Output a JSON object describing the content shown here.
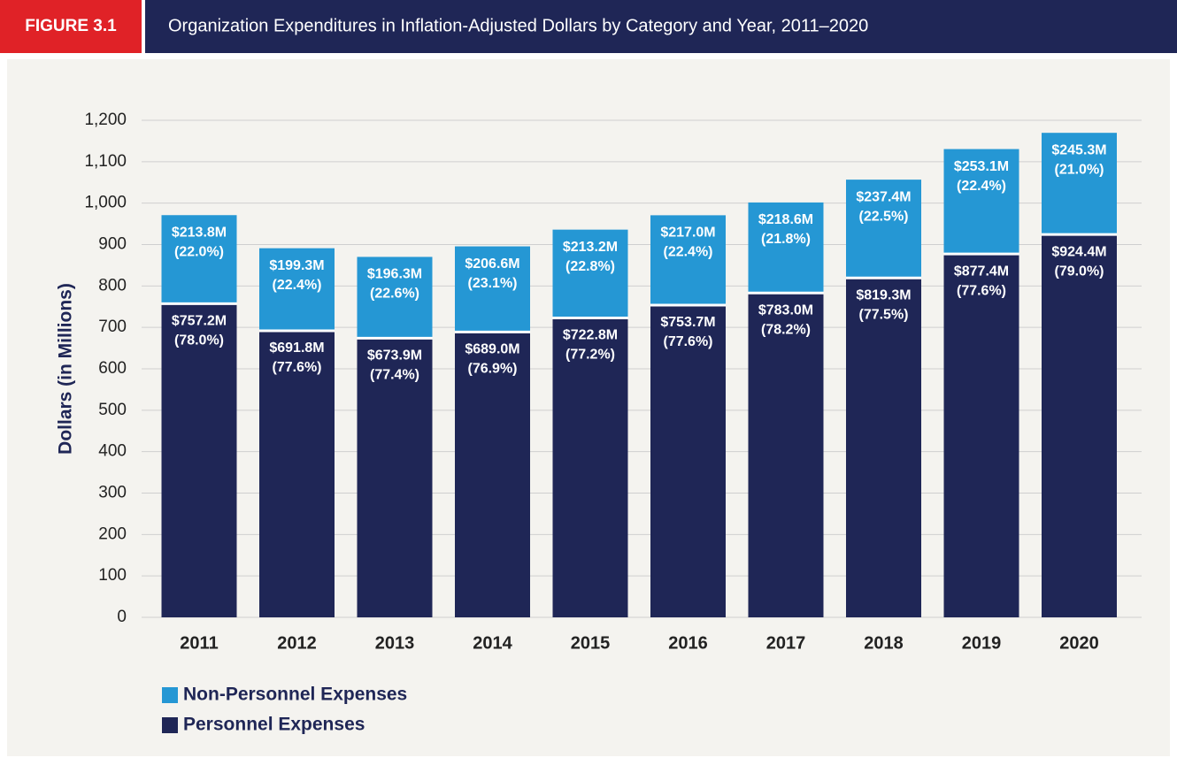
{
  "figure_label": "FIGURE 3.1",
  "chart_data": {
    "type": "stacked_bar",
    "title": "Organization Expenditures in Inflation-Adjusted Dollars by Category and Year, 2011–2020",
    "ylabel": "Dollars (in Millions)",
    "categories": [
      "2011",
      "2012",
      "2013",
      "2014",
      "2015",
      "2016",
      "2017",
      "2018",
      "2019",
      "2020"
    ],
    "series": [
      {
        "name": "Personnel Expenses",
        "color": "#1f2656",
        "values": [
          757.2,
          691.8,
          673.9,
          689.0,
          722.8,
          753.7,
          783.0,
          819.3,
          877.4,
          924.4
        ],
        "value_labels": [
          "$757.2M",
          "$691.8M",
          "$673.9M",
          "$689.0M",
          "$722.8M",
          "$753.7M",
          "$783.0M",
          "$819.3M",
          "$877.4M",
          "$924.4M"
        ],
        "share_labels": [
          "(78.0%)",
          "(77.6%)",
          "(77.4%)",
          "(76.9%)",
          "(77.2%)",
          "(77.6%)",
          "(78.2%)",
          "(77.5%)",
          "(77.6%)",
          "(79.0%)"
        ]
      },
      {
        "name": "Non-Personnel Expenses",
        "color": "#2597d4",
        "values": [
          213.8,
          199.3,
          196.3,
          206.6,
          213.2,
          217.0,
          218.6,
          237.4,
          253.1,
          245.3
        ],
        "value_labels": [
          "$213.8M",
          "$199.3M",
          "$196.3M",
          "$206.6M",
          "$213.2M",
          "$217.0M",
          "$218.6M",
          "$237.4M",
          "$253.1M",
          "$245.3M"
        ],
        "share_labels": [
          "(22.0%)",
          "(22.4%)",
          "(22.6%)",
          "(23.1%)",
          "(22.8%)",
          "(22.4%)",
          "(21.8%)",
          "(22.5%)",
          "(22.4%)",
          "(21.0%)"
        ]
      }
    ],
    "ylim": [
      0,
      1200
    ],
    "yticks": [
      0,
      100,
      200,
      300,
      400,
      500,
      600,
      700,
      800,
      900,
      {
        "value": 1000,
        "label": "1,000"
      },
      {
        "value": 1100,
        "label": "1,100"
      },
      {
        "value": 1200,
        "label": "1,200"
      }
    ],
    "grid": true
  }
}
